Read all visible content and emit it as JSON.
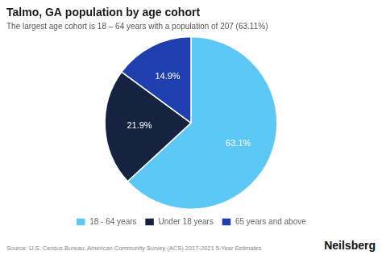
{
  "chart_data": {
    "type": "pie",
    "title": "Talmo, GA population by age cohort",
    "subtitle": "The largest age cohort is 18 – 64 years with a population of 207 (63.11%)",
    "categories": [
      "18 - 64 years",
      "Under 18 years",
      "65 years and above"
    ],
    "values": [
      63.1,
      21.9,
      14.9
    ],
    "value_labels": [
      "63.1%",
      "21.9%",
      "14.9%"
    ],
    "colors": [
      "#5bc8f5",
      "#152240",
      "#1e40af"
    ],
    "data_labels": true,
    "legend": "bottom",
    "annotations": [
      "Source: U.S. Census Bureau, American Community Survey (ACS) 2017-2021 5-Year Estimates",
      "Neilsberg"
    ]
  }
}
